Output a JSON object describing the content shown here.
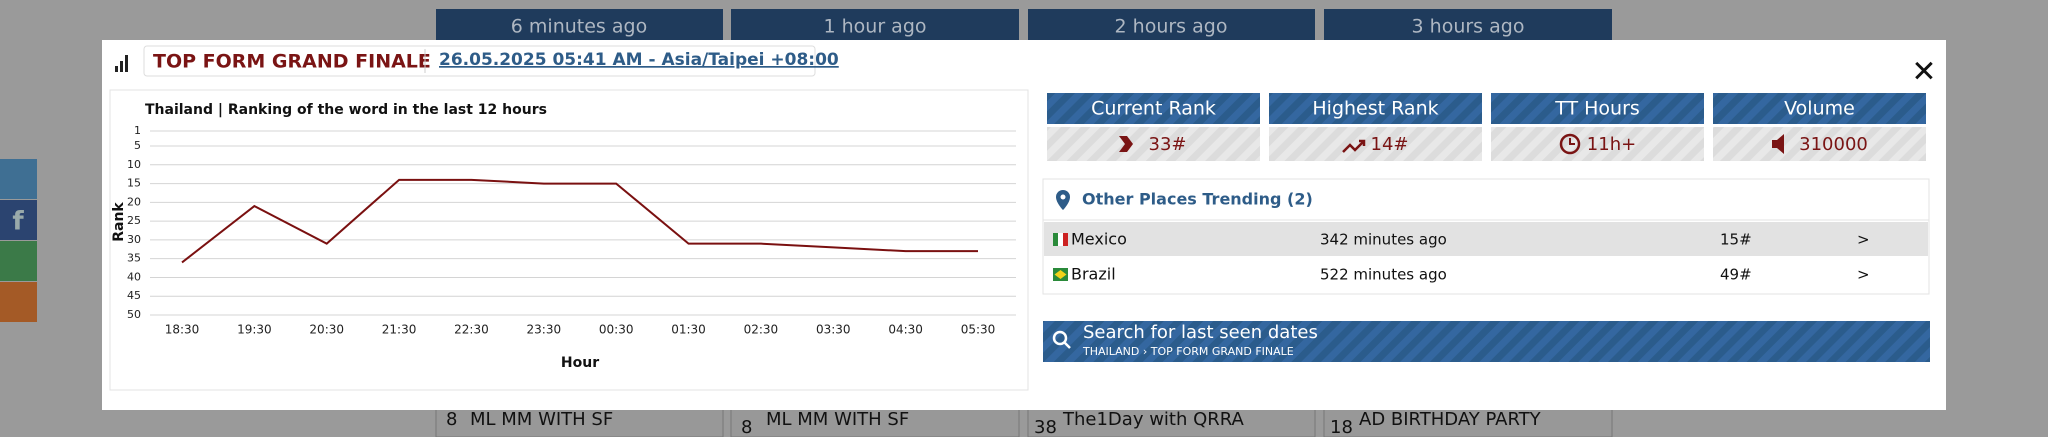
{
  "background_tabs": [
    "6 minutes ago",
    "1 hour ago",
    "2 hours ago",
    "3 hours ago"
  ],
  "background_rows": [
    {
      "rank": "8",
      "title": "ML MM WITH SF"
    },
    {
      "rank": "8",
      "title": "ML MM WITH SF"
    },
    {
      "rank": "38",
      "title": "The1Day with QRRA"
    },
    {
      "rank": "18",
      "title": "AD BIRTHDAY PARTY"
    }
  ],
  "modal": {
    "title": "TOP FORM GRAND FINALE",
    "date": "26.05.2025 05:41 AM - Asia/Taipei +08:00"
  },
  "chart_data": {
    "type": "line",
    "title": "Thailand | Ranking of the word in the last 12 hours",
    "x_label": "Hour",
    "y_label": "Rank",
    "categories": [
      "18:30",
      "19:30",
      "20:30",
      "21:30",
      "22:30",
      "23:30",
      "00:30",
      "01:30",
      "02:30",
      "03:30",
      "04:30",
      "05:30"
    ],
    "values": [
      36,
      21,
      31,
      14,
      14,
      15,
      15,
      31,
      31,
      32,
      33,
      33
    ],
    "color": "#7a1010",
    "ylim": [
      50,
      1
    ],
    "yticks": [
      1,
      5,
      10,
      15,
      20,
      25,
      30,
      35,
      40,
      45,
      50
    ],
    "grid": true
  },
  "stats": [
    {
      "label": "Current Rank",
      "value": "33#"
    },
    {
      "label": "Highest Rank",
      "value": "14#"
    },
    {
      "label": "TT Hours",
      "value": "11h+"
    },
    {
      "label": "Volume",
      "value": "310000"
    }
  ],
  "other_places": {
    "title": "Other Places Trending (2)",
    "rows": [
      {
        "country": "Mexico",
        "time": "342 minutes ago",
        "rank": "15#",
        "link": ">"
      },
      {
        "country": "Brazil",
        "time": "522 minutes ago",
        "rank": "49#",
        "link": ">"
      }
    ]
  },
  "search": {
    "title": "Search for last seen dates",
    "path": "THAILAND › TOP FORM GRAND FINALE"
  }
}
